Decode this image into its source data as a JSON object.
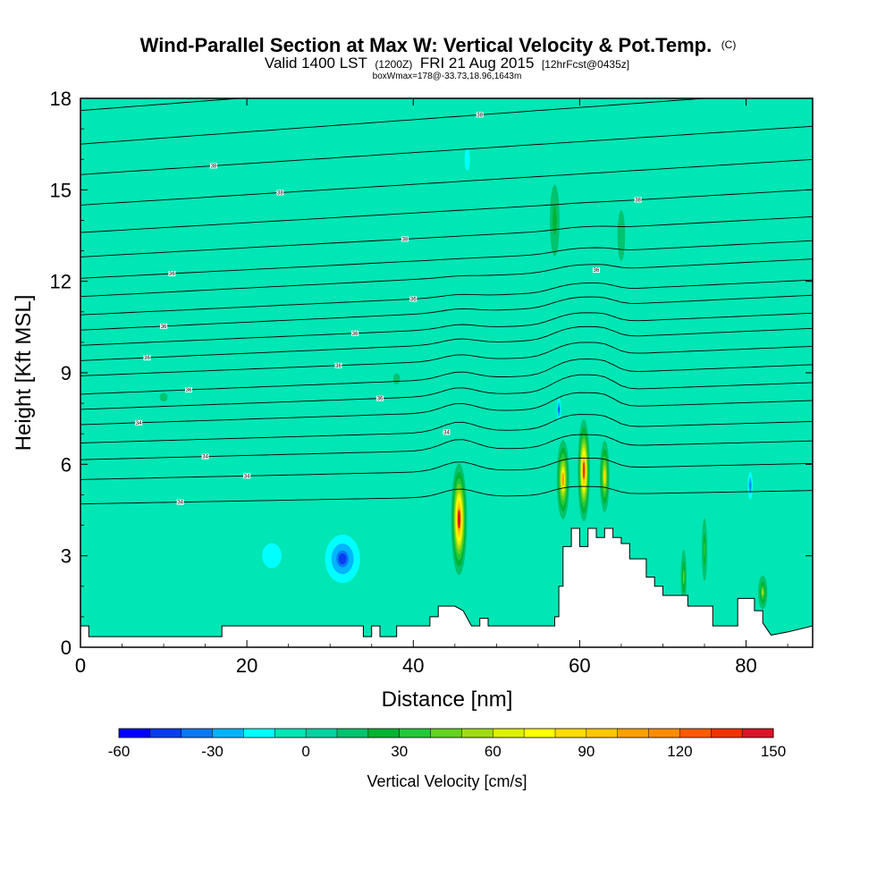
{
  "chart_data": {
    "type": "heatmap",
    "title": "Wind-Parallel Section at Max W: Vertical Velocity & Pot.Temp.",
    "title_mark": "(C)",
    "subtitle_lead": "Valid 1400 LST",
    "subtitle_z": "(1200Z)",
    "subtitle_date": "FRI 21 Aug 2015",
    "subtitle_fcst": "[12hrFcst@0435z]",
    "subtitle2": "boxWmax=178@-33.73,18.96,1643m",
    "xlabel": "Distance [nm]",
    "ylabel": "Height [Kft MSL]",
    "xlim": [
      0,
      88
    ],
    "ylim": [
      0,
      18
    ],
    "xticks": [
      0,
      20,
      40,
      60,
      80
    ],
    "yticks": [
      0,
      3,
      6,
      9,
      12,
      15,
      18
    ],
    "colorbar": {
      "title": "Vertical Velocity [cm/s]",
      "min": -60,
      "max": 150,
      "step": 10,
      "ticks": [
        -60,
        -30,
        0,
        30,
        60,
        90,
        120,
        150
      ],
      "colors": [
        "#0000ff",
        "#0a3cf0",
        "#0a78f5",
        "#00b4ff",
        "#00ffff",
        "#00e6b4",
        "#00d2a0",
        "#00c36e",
        "#00b432",
        "#22c83c",
        "#64d21e",
        "#a0dc14",
        "#dcf000",
        "#ffff00",
        "#ffdc00",
        "#ffc800",
        "#ffa000",
        "#ff8c00",
        "#ff5a00",
        "#f03200",
        "#dc1428"
      ]
    },
    "terrain": {
      "distance_nm": [
        0,
        1,
        1,
        17,
        17,
        34,
        34,
        35,
        35,
        36,
        36,
        38,
        38,
        42,
        42,
        43,
        43,
        45,
        46,
        47,
        48,
        48,
        49,
        49,
        57,
        57,
        57.5,
        57.5,
        58,
        58,
        59,
        59,
        60,
        60,
        61,
        61,
        62,
        62,
        63,
        63,
        64,
        64,
        65,
        65,
        66,
        66,
        68,
        68,
        69,
        69,
        70,
        70,
        73,
        73,
        76,
        76,
        79,
        79,
        81,
        81,
        82,
        82,
        83,
        85,
        88
      ],
      "height_kft": [
        0.7,
        0.7,
        0.35,
        0.35,
        0.7,
        0.7,
        0.35,
        0.35,
        0.7,
        0.7,
        0.35,
        0.35,
        0.7,
        0.7,
        1.0,
        1.0,
        1.35,
        1.35,
        1.2,
        0.7,
        0.7,
        0.95,
        0.95,
        0.7,
        0.7,
        1.0,
        1.0,
        2.0,
        2.0,
        3.3,
        3.3,
        3.9,
        3.9,
        3.3,
        3.3,
        3.9,
        3.9,
        3.6,
        3.6,
        3.9,
        3.9,
        3.6,
        3.6,
        3.4,
        3.4,
        2.9,
        2.9,
        2.3,
        2.3,
        2.0,
        2.0,
        1.7,
        1.7,
        1.35,
        1.35,
        0.7,
        0.7,
        1.6,
        1.6,
        1.2,
        1.2,
        0.8,
        0.4,
        0.5,
        0.7
      ]
    },
    "theta_contours": [
      {
        "base": 4.7,
        "slope": 0.005,
        "label": "34",
        "label_x": 12
      },
      {
        "base": 5.5,
        "slope": 0.006,
        "label": "34",
        "label_x": 20
      },
      {
        "base": 6.15,
        "slope": 0.007,
        "label": "34",
        "label_x": 15
      },
      {
        "base": 6.7,
        "slope": 0.008,
        "label": "34",
        "label_x": 44
      },
      {
        "base": 7.3,
        "slope": 0.009,
        "label": "34",
        "label_x": 7
      },
      {
        "base": 7.8,
        "slope": 0.01,
        "label": "36",
        "label_x": 36
      },
      {
        "base": 8.3,
        "slope": 0.011,
        "label": "36",
        "label_x": 13
      },
      {
        "base": 8.9,
        "slope": 0.011,
        "label": "36",
        "label_x": 31
      },
      {
        "base": 9.4,
        "slope": 0.012,
        "label": "36",
        "label_x": 8
      },
      {
        "base": 9.9,
        "slope": 0.012,
        "label": "36",
        "label_x": 33
      },
      {
        "base": 10.4,
        "slope": 0.013,
        "label": "36",
        "label_x": 10
      },
      {
        "base": 10.9,
        "slope": 0.013,
        "label": "36",
        "label_x": 40
      },
      {
        "base": 11.5,
        "slope": 0.014,
        "label": "36",
        "label_x": 62
      },
      {
        "base": 12.1,
        "slope": 0.014,
        "label": "36",
        "label_x": 11
      },
      {
        "base": 12.8,
        "slope": 0.015,
        "label": "38",
        "label_x": 39
      },
      {
        "base": 13.6,
        "slope": 0.016,
        "label": "38",
        "label_x": 67
      },
      {
        "base": 14.5,
        "slope": 0.017,
        "label": "38",
        "label_x": 24
      },
      {
        "base": 15.5,
        "slope": 0.018,
        "label": "38",
        "label_x": 16
      },
      {
        "base": 16.5,
        "slope": 0.02,
        "label": "38",
        "label_x": 48
      },
      {
        "base": 17.6,
        "slope": 0.021,
        "label": "",
        "label_x": 0
      }
    ],
    "updraft_cores": [
      {
        "x_nm": 45.5,
        "z_kft": 4.2,
        "peak_cms": 140,
        "half_width_nm": 1.3,
        "half_height_kft": 2.5
      },
      {
        "x_nm": 58.0,
        "z_kft": 5.5,
        "peak_cms": 100,
        "half_width_nm": 1.1,
        "half_height_kft": 1.9
      },
      {
        "x_nm": 60.5,
        "z_kft": 5.8,
        "peak_cms": 135,
        "half_width_nm": 1.0,
        "half_height_kft": 2.3
      },
      {
        "x_nm": 63.0,
        "z_kft": 5.6,
        "peak_cms": 80,
        "half_width_nm": 0.9,
        "half_height_kft": 1.8
      },
      {
        "x_nm": 72.5,
        "z_kft": 2.3,
        "peak_cms": 40,
        "half_width_nm": 0.7,
        "half_height_kft": 1.8
      },
      {
        "x_nm": 75.0,
        "z_kft": 3.2,
        "peak_cms": 35,
        "half_width_nm": 0.7,
        "half_height_kft": 2.2
      },
      {
        "x_nm": 82.0,
        "z_kft": 1.8,
        "peak_cms": 50,
        "half_width_nm": 1.0,
        "half_height_kft": 1.0
      },
      {
        "x_nm": 57.0,
        "z_kft": 14.0,
        "peak_cms": 20,
        "half_width_nm": 2.0,
        "half_height_kft": 4.0
      },
      {
        "x_nm": 65.0,
        "z_kft": 13.5,
        "peak_cms": 15,
        "half_width_nm": 2.5,
        "half_height_kft": 4.5
      },
      {
        "x_nm": 38.0,
        "z_kft": 8.8,
        "peak_cms": 12,
        "half_width_nm": 3.5,
        "half_height_kft": 1.5
      },
      {
        "x_nm": 10.0,
        "z_kft": 8.2,
        "peak_cms": 10,
        "half_width_nm": 4.0,
        "half_height_kft": 1.2
      }
    ],
    "downdraft_cores": [
      {
        "x_nm": 31.5,
        "z_kft": 2.9,
        "peak_cms": -45,
        "half_width_nm": 4.0,
        "half_height_kft": 1.5
      },
      {
        "x_nm": 23.0,
        "z_kft": 3.0,
        "peak_cms": -20,
        "half_width_nm": 4.0,
        "half_height_kft": 1.4
      },
      {
        "x_nm": 13.5,
        "z_kft": 2.7,
        "peak_cms": -10,
        "half_width_nm": 2.0,
        "half_height_kft": 1.2
      },
      {
        "x_nm": 57.5,
        "z_kft": 7.8,
        "peak_cms": -45,
        "half_width_nm": 0.5,
        "half_height_kft": 0.7
      },
      {
        "x_nm": 80.5,
        "z_kft": 5.3,
        "peak_cms": -40,
        "half_width_nm": 0.6,
        "half_height_kft": 0.9
      },
      {
        "x_nm": 46.5,
        "z_kft": 16.0,
        "peak_cms": -15,
        "half_width_nm": 1.8,
        "half_height_kft": 2.0
      }
    ]
  }
}
